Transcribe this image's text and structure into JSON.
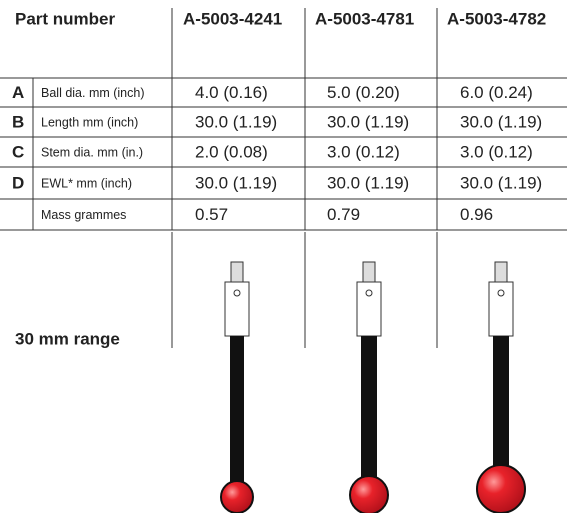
{
  "header": {
    "title": "Part number",
    "columns": [
      "A-5003-4241",
      "A-5003-4781",
      "A-5003-4782"
    ]
  },
  "table": {
    "rows": [
      {
        "letter": "A",
        "label": "Ball dia. mm (inch)",
        "values": [
          "4.0 (0.16)",
          "5.0 (0.20)",
          "6.0 (0.24)"
        ]
      },
      {
        "letter": "B",
        "label": "Length mm (inch)",
        "values": [
          "30.0 (1.19)",
          "30.0 (1.19)",
          "30.0 (1.19)"
        ]
      },
      {
        "letter": "C",
        "label": "Stem dia. mm (in.)",
        "values": [
          "2.0 (0.08)",
          "3.0 (0.12)",
          "3.0 (0.12)"
        ]
      },
      {
        "letter": "D",
        "label": "EWL* mm (inch)",
        "values": [
          "30.0 (1.19)",
          "30.0 (1.19)",
          "30.0 (1.19)"
        ]
      },
      {
        "letter": null,
        "label": "Mass grammes",
        "values": [
          "0.57",
          "0.79",
          "0.96"
        ]
      }
    ]
  },
  "range_label": "30 mm range"
}
